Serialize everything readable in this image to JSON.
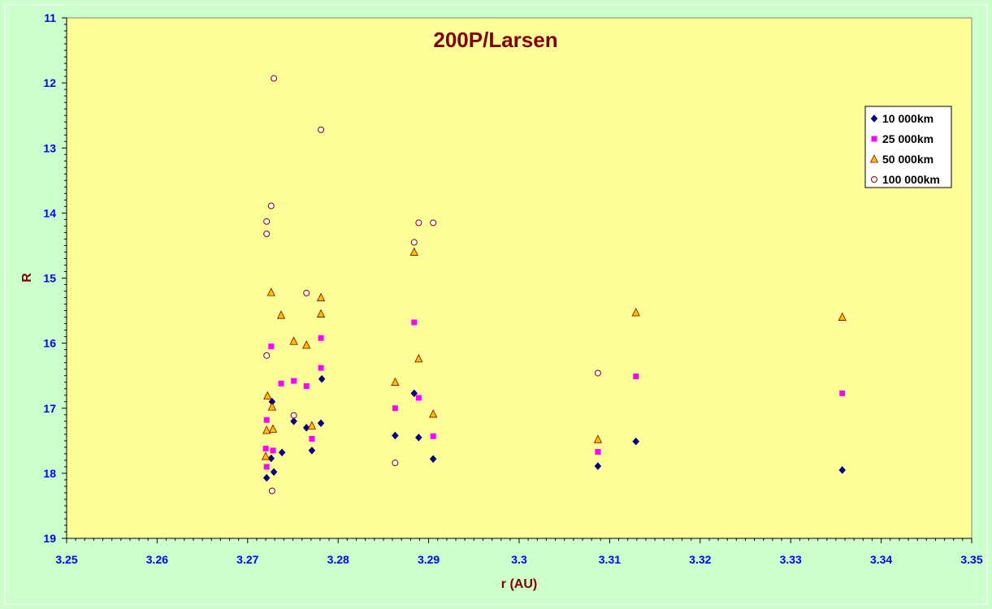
{
  "chart_data": {
    "type": "scatter",
    "title": "200P/Larsen",
    "xlabel": "r (AU)",
    "ylabel": "R",
    "xlim": [
      3.25,
      3.35
    ],
    "ylim": [
      11,
      19
    ],
    "y_inverted": true,
    "x_major_ticks": [
      3.25,
      3.26,
      3.27,
      3.28,
      3.29,
      3.3,
      3.31,
      3.32,
      3.33,
      3.34,
      3.35
    ],
    "x_tick_labels": [
      "3.25",
      "3.26",
      "3.27",
      "3.28",
      "3.29",
      "3.3",
      "3.31",
      "3.32",
      "3.33",
      "3.34",
      "3.35"
    ],
    "y_major_ticks": [
      11,
      12,
      13,
      14,
      15,
      16,
      17,
      18,
      19
    ],
    "y_tick_labels": [
      "11",
      "12",
      "13",
      "14",
      "15",
      "16",
      "17",
      "18",
      "19"
    ],
    "grid": false,
    "legend_position": "top-right",
    "series": [
      {
        "name": "10 000km",
        "marker": "diamond",
        "color": "#000080",
        "x": [
          3.2721,
          3.2726,
          3.2727,
          3.2729,
          3.2738,
          3.2751,
          3.2765,
          3.2771,
          3.2781,
          3.2782,
          3.2863,
          3.2884,
          3.2889,
          3.2905,
          3.3087,
          3.3129,
          3.3357
        ],
        "y": [
          18.07,
          17.77,
          16.9,
          17.98,
          17.68,
          17.2,
          17.3,
          17.65,
          17.23,
          16.55,
          17.42,
          16.77,
          17.45,
          17.78,
          17.89,
          17.51,
          17.95
        ]
      },
      {
        "name": "25 000km",
        "marker": "square",
        "color": "#ff00ff",
        "x": [
          3.272,
          3.2721,
          3.2721,
          3.2726,
          3.2728,
          3.2737,
          3.2751,
          3.2765,
          3.2771,
          3.2781,
          3.2781,
          3.2863,
          3.2884,
          3.2889,
          3.2905,
          3.3087,
          3.3129,
          3.3357
        ],
        "y": [
          17.62,
          17.9,
          17.18,
          16.05,
          17.65,
          16.62,
          16.58,
          16.66,
          17.47,
          15.92,
          16.38,
          17.0,
          15.68,
          16.84,
          17.43,
          17.67,
          16.51,
          16.77
        ]
      },
      {
        "name": "50 000km",
        "marker": "triangle",
        "color": "#ffc000",
        "x": [
          3.272,
          3.2721,
          3.2722,
          3.2726,
          3.2727,
          3.2728,
          3.2737,
          3.2751,
          3.2765,
          3.2771,
          3.2781,
          3.2781,
          3.2863,
          3.2884,
          3.2889,
          3.2905,
          3.3087,
          3.3129,
          3.3357
        ],
        "y": [
          17.74,
          17.34,
          16.81,
          15.22,
          16.98,
          17.32,
          15.57,
          15.97,
          16.03,
          17.27,
          15.3,
          15.55,
          16.6,
          14.6,
          16.24,
          17.09,
          17.48,
          15.53,
          15.6
        ]
      },
      {
        "name": "100 000km",
        "marker": "circle",
        "color": "#800000",
        "x": [
          3.2721,
          3.2721,
          3.2721,
          3.2726,
          3.2727,
          3.2729,
          3.2751,
          3.2765,
          3.2781,
          3.2863,
          3.2884,
          3.2889,
          3.2905,
          3.3087
        ],
        "y": [
          14.13,
          14.32,
          16.19,
          13.89,
          18.27,
          11.93,
          17.11,
          15.23,
          12.72,
          17.84,
          14.45,
          14.15,
          14.15,
          16.46
        ]
      }
    ]
  }
}
